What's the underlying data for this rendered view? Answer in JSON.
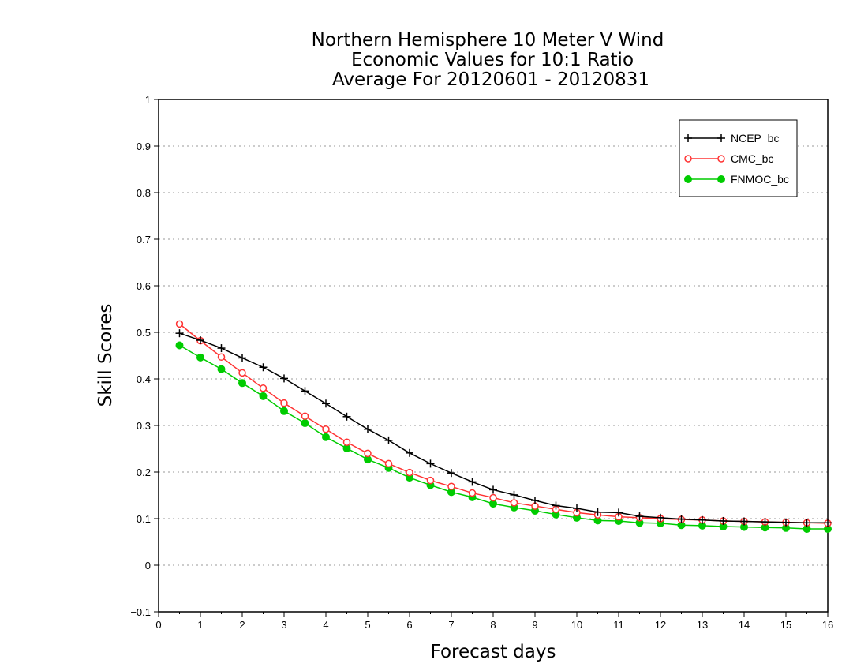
{
  "chart_data": {
    "type": "line",
    "title_lines": [
      "Northern Hemisphere 10 Meter V Wind",
      "Economic Values for 10:1 Ratio",
      "Average For 20120601 - 20120831"
    ],
    "xlabel": "Forecast days",
    "ylabel": "Skill Scores",
    "xlim": [
      0,
      16
    ],
    "ylim": [
      -0.1,
      1
    ],
    "x_ticks": [
      "0",
      "1",
      "2",
      "3",
      "4",
      "5",
      "6",
      "7",
      "8",
      "9",
      "10",
      "11",
      "12",
      "13",
      "14",
      "15",
      "16"
    ],
    "y_ticks": [
      "−0.1",
      "0",
      "0.1",
      "0.2",
      "0.3",
      "0.4",
      "0.5",
      "0.6",
      "0.7",
      "0.8",
      "0.9",
      "1"
    ],
    "grid": "horizontal dotted",
    "legend_position": "top-right",
    "x": [
      0.5,
      1,
      1.5,
      2,
      2.5,
      3,
      3.5,
      4,
      4.5,
      5,
      5.5,
      6,
      6.5,
      7,
      7.5,
      8,
      8.5,
      9,
      9.5,
      10,
      10.5,
      11,
      11.5,
      12,
      12.5,
      13,
      13.5,
      14,
      14.5,
      15,
      15.5,
      16
    ],
    "series": [
      {
        "name": "NCEP_bc",
        "color": "#000000",
        "marker": "plus",
        "values": [
          0.498,
          0.483,
          0.466,
          0.445,
          0.425,
          0.401,
          0.374,
          0.347,
          0.319,
          0.292,
          0.268,
          0.241,
          0.218,
          0.198,
          0.179,
          0.162,
          0.151,
          0.139,
          0.128,
          0.122,
          0.114,
          0.113,
          0.105,
          0.102,
          0.099,
          0.097,
          0.095,
          0.094,
          0.093,
          0.092,
          0.091,
          0.091
        ]
      },
      {
        "name": "CMC_bc",
        "color": "#ff3333",
        "marker": "open-circle",
        "values": [
          0.518,
          0.482,
          0.447,
          0.413,
          0.38,
          0.348,
          0.32,
          0.292,
          0.264,
          0.24,
          0.218,
          0.199,
          0.182,
          0.169,
          0.155,
          0.145,
          0.134,
          0.127,
          0.12,
          0.113,
          0.108,
          0.104,
          0.102,
          0.1,
          0.098,
          0.097,
          0.095,
          0.094,
          0.093,
          0.092,
          0.091,
          0.09
        ]
      },
      {
        "name": "FNMOC_bc",
        "color": "#00cc00",
        "marker": "filled-circle",
        "values": [
          0.472,
          0.446,
          0.421,
          0.391,
          0.363,
          0.331,
          0.305,
          0.275,
          0.251,
          0.227,
          0.209,
          0.188,
          0.172,
          0.157,
          0.146,
          0.132,
          0.124,
          0.117,
          0.109,
          0.102,
          0.096,
          0.095,
          0.091,
          0.09,
          0.086,
          0.085,
          0.083,
          0.082,
          0.081,
          0.08,
          0.078,
          0.078
        ]
      }
    ]
  }
}
